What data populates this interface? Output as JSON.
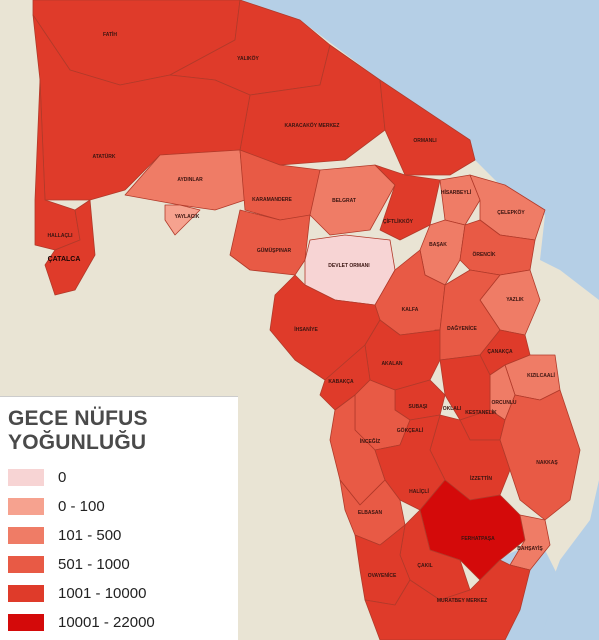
{
  "legend": {
    "title_line1": "GECE NÜFUS",
    "title_line2": "YOĞUNLUĞU",
    "classes": [
      {
        "label": "0",
        "color": "#f7d4d4"
      },
      {
        "label": "0 - 100",
        "color": "#f6a28f"
      },
      {
        "label": "101 - 500",
        "color": "#ef7c66"
      },
      {
        "label": "501 - 1000",
        "color": "#e85a45"
      },
      {
        "label": "1001 - 10000",
        "color": "#df3b2a"
      },
      {
        "label": "10001 - 22000",
        "color": "#d40a0a"
      }
    ]
  },
  "colors": {
    "sea": "#b5cfe6",
    "land": "#e9e4d4",
    "border": "#b13a2a"
  },
  "regions": [
    {
      "name": "FATİH",
      "class": 4
    },
    {
      "name": "YALIKÖY",
      "class": 4
    },
    {
      "name": "KARACAKÖY MERKEZ",
      "class": 4
    },
    {
      "name": "ORMANLI",
      "class": 4
    },
    {
      "name": "ATATÜRK",
      "class": 4
    },
    {
      "name": "HALLAÇLI",
      "class": 4
    },
    {
      "name": "ÇATALCA",
      "class": 4
    },
    {
      "name": "AYDINLAR",
      "class": 2
    },
    {
      "name": "YAYLACIK",
      "class": 1
    },
    {
      "name": "KARAMANDERE",
      "class": 3
    },
    {
      "name": "BELGRAT",
      "class": 2
    },
    {
      "name": "ÇİFTLİKKÖY",
      "class": 4
    },
    {
      "name": "HİSARBEYLİ",
      "class": 2
    },
    {
      "name": "ÇELEPKÖY",
      "class": 2
    },
    {
      "name": "GÜMÜŞPINAR",
      "class": 3
    },
    {
      "name": "DEVLET ORMANI",
      "class": 0
    },
    {
      "name": "BAŞAK",
      "class": 2
    },
    {
      "name": "ÖRENCİK",
      "class": 3
    },
    {
      "name": "YAZLIK",
      "class": 2
    },
    {
      "name": "KALFA",
      "class": 3
    },
    {
      "name": "İHSANİYE",
      "class": 4
    },
    {
      "name": "DAĞYENİCE",
      "class": 3
    },
    {
      "name": "ÇANAKÇA",
      "class": 4
    },
    {
      "name": "AKALAN",
      "class": 4
    },
    {
      "name": "KIZILCAALİ",
      "class": 2
    },
    {
      "name": "KABAKÇA",
      "class": 4
    },
    {
      "name": "ORCUNLU",
      "class": 2
    },
    {
      "name": "SUBAŞI",
      "class": 4
    },
    {
      "name": "OKLALI",
      "class": 4
    },
    {
      "name": "KESTANELİK",
      "class": 4
    },
    {
      "name": "GÖKÇEALİ",
      "class": 3
    },
    {
      "name": "İNCEĞİZ",
      "class": 3
    },
    {
      "name": "NAKKAŞ",
      "class": 3
    },
    {
      "name": "İZZETTİN",
      "class": 4
    },
    {
      "name": "HALİÇLİ",
      "class": 4
    },
    {
      "name": "ELBASAN",
      "class": 3
    },
    {
      "name": "FERHATPAŞA",
      "class": 5
    },
    {
      "name": "BAHŞAYİŞ",
      "class": 2
    },
    {
      "name": "ÇAKIL",
      "class": 4
    },
    {
      "name": "OVAYENİCE",
      "class": 4
    },
    {
      "name": "MURATBEY MERKEZ",
      "class": 4
    }
  ]
}
